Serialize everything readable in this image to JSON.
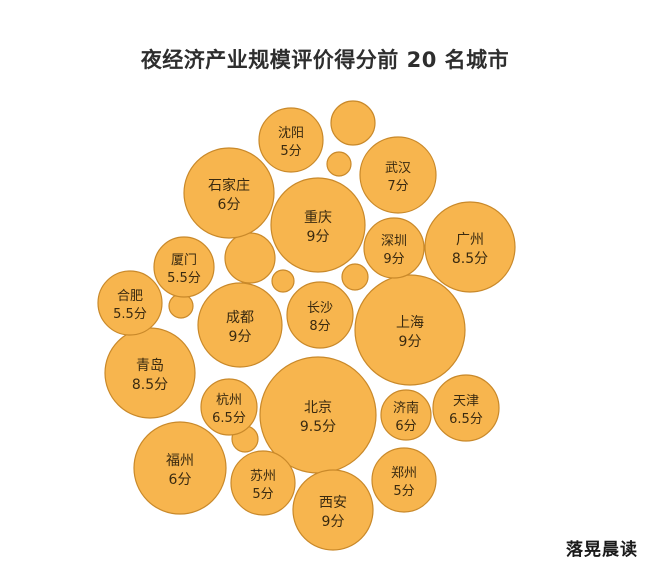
{
  "title": "夜经济产业规模评价得分前 20 名城市",
  "watermark": "落晃晨读",
  "colors": {
    "bubble_fill": "#f7b54e",
    "bubble_stroke": "#c9892a",
    "text": "#3a2a10"
  },
  "chart_data": {
    "type": "bubble",
    "title": "夜经济产业规模评价得分前 20 名城市",
    "points": [
      {
        "city": "北京",
        "score": 9.5,
        "label": "9.5分"
      },
      {
        "city": "重庆",
        "score": 9,
        "label": "9分"
      },
      {
        "city": "上海",
        "score": 9,
        "label": "9分"
      },
      {
        "city": "成都",
        "score": 9,
        "label": "9分"
      },
      {
        "city": "深圳",
        "score": 9,
        "label": "9分"
      },
      {
        "city": "西安",
        "score": 9,
        "label": "9分"
      },
      {
        "city": "广州",
        "score": 8.5,
        "label": "8.5分"
      },
      {
        "city": "青岛",
        "score": 8.5,
        "label": "8.5分"
      },
      {
        "city": "长沙",
        "score": 8,
        "label": "8分"
      },
      {
        "city": "武汉",
        "score": 7,
        "label": "7分"
      },
      {
        "city": "杭州",
        "score": 6.5,
        "label": "6.5分"
      },
      {
        "city": "天津",
        "score": 6.5,
        "label": "6.5分"
      },
      {
        "city": "石家庄",
        "score": 6,
        "label": "6分"
      },
      {
        "city": "福州",
        "score": 6,
        "label": "6分"
      },
      {
        "city": "济南",
        "score": 6,
        "label": "6分"
      },
      {
        "city": "厦门",
        "score": 5.5,
        "label": "5.5分"
      },
      {
        "city": "合肥",
        "score": 5.5,
        "label": "5.5分"
      },
      {
        "city": "沈阳",
        "score": 5,
        "label": "5分"
      },
      {
        "city": "苏州",
        "score": 5,
        "label": "5分"
      },
      {
        "city": "郑州",
        "score": 5,
        "label": "5分"
      }
    ]
  }
}
